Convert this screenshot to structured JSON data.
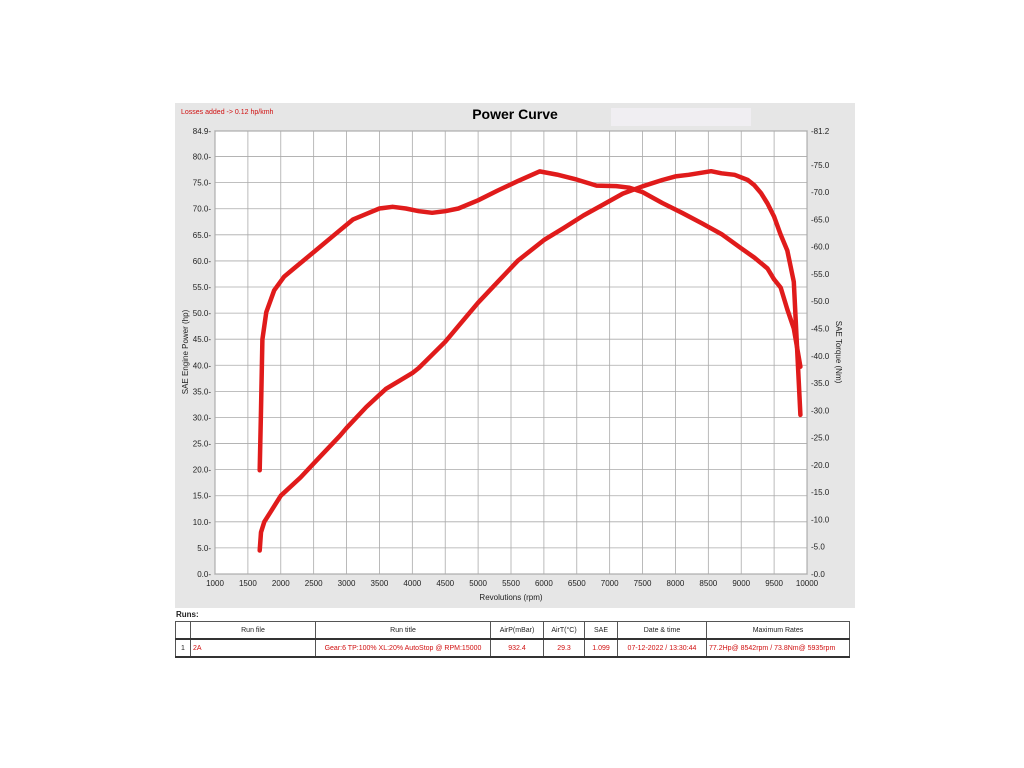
{
  "chart_data": {
    "type": "line",
    "title": "Power Curve",
    "annotation": "Losses added -> 0.12 hp/kmh",
    "xlabel": "Revolutions (rpm)",
    "ylabel": "SAE Engine Power (hp)",
    "y2label": "SAE Torque (Nm)",
    "xlim": [
      1000,
      10000
    ],
    "ylim": [
      0.0,
      84.9
    ],
    "y2lim": [
      0.0,
      81.2
    ],
    "x_ticks": [
      "1000",
      "1500",
      "2000",
      "2500",
      "3000",
      "3500",
      "4000",
      "4500",
      "5000",
      "5500",
      "6000",
      "6500",
      "7000",
      "7500",
      "8000",
      "8500",
      "9000",
      "9500",
      "10000"
    ],
    "y_ticks": [
      "0.0",
      "5.0",
      "10.0",
      "15.0",
      "20.0",
      "25.0",
      "30.0",
      "35.0",
      "40.0",
      "45.0",
      "50.0",
      "55.0",
      "60.0",
      "65.0",
      "70.0",
      "75.0",
      "80.0",
      "84.9"
    ],
    "y2_ticks": [
      "0.0",
      "5.0",
      "10.0",
      "15.0",
      "20.0",
      "25.0",
      "30.0",
      "35.0",
      "40.0",
      "45.0",
      "50.0",
      "55.0",
      "60.0",
      "65.0",
      "70.0",
      "75.0",
      "81.2"
    ],
    "grid": true,
    "series": [
      {
        "axis": "left",
        "x": [
          1680,
          1700,
          1750,
          1850,
          2000,
          2300,
          2600,
          2900,
          3000,
          3300,
          3600,
          3800,
          4000,
          4100,
          4300,
          4500,
          4700,
          5000,
          5300,
          5600,
          6000,
          6300,
          6600,
          6900,
          7200,
          7500,
          7800,
          8000,
          8200,
          8400,
          8542,
          8700,
          8900,
          9100,
          9200,
          9300,
          9400,
          9500,
          9600,
          9700,
          9800,
          9900
        ],
        "y": [
          4.5,
          8,
          10,
          12,
          15,
          18.5,
          22.5,
          26.5,
          28,
          32,
          35.5,
          37,
          38.5,
          39.5,
          42,
          44.5,
          47.5,
          52,
          56,
          60,
          64,
          66.3,
          68.7,
          70.8,
          72.9,
          74.3,
          75.5,
          76.2,
          76.5,
          76.9,
          77.2,
          76.8,
          76.5,
          75.5,
          74.5,
          73,
          71,
          68.5,
          65,
          62,
          56,
          30.5
        ]
      },
      {
        "axis": "right",
        "x": [
          1680,
          1700,
          1720,
          1780,
          1900,
          2050,
          2200,
          2500,
          2800,
          3100,
          3300,
          3500,
          3700,
          3900,
          4100,
          4300,
          4500,
          4700,
          5000,
          5300,
          5600,
          5935,
          6200,
          6500,
          6800,
          7100,
          7300,
          7500,
          7800,
          8100,
          8400,
          8700,
          9000,
          9200,
          9400,
          9500,
          9600,
          9700,
          9800,
          9900
        ],
        "y": [
          19,
          30,
          43,
          48,
          52,
          54.5,
          56,
          59,
          62,
          65,
          66,
          67,
          67.3,
          67,
          66.5,
          66.2,
          66.5,
          67,
          68.5,
          70.3,
          72,
          73.8,
          73.2,
          72.3,
          71.2,
          71.1,
          70.8,
          70,
          68,
          66.2,
          64.3,
          62.3,
          59.7,
          58,
          56,
          54,
          52.5,
          48.5,
          45,
          38
        ]
      }
    ]
  },
  "runs": {
    "label": "Runs:",
    "columns": [
      "Run file",
      "Run title",
      "AirP(mBar)",
      "AirT(°C)",
      "SAE",
      "Date & time",
      "Maximum Rates"
    ],
    "rows": [
      {
        "index": "1",
        "run_file": "2A",
        "run_title": "Gear:6 TP:100% XL:20% AutoStop @ RPM:15000",
        "airp": "932.4",
        "airt": "29.3",
        "sae": "1.099",
        "datetime": "07-12-2022 / 13:30:44",
        "max_rates": "77.2Hp@ 8542rpm / 73.8Nm@ 5935rpm"
      }
    ]
  },
  "colors": {
    "curve": "#e01b1b",
    "annotation": "#d01010",
    "panel": "#e6e6e6",
    "grid": "#aaaaaa"
  }
}
